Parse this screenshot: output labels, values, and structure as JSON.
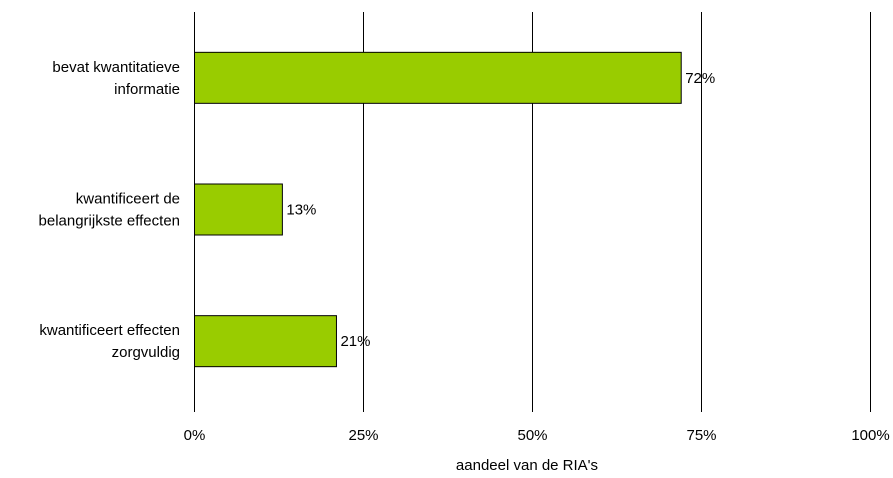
{
  "chart_data": {
    "type": "bar",
    "orientation": "horizontal",
    "categories": [
      [
        "bevat kwantitatieve",
        "informatie"
      ],
      [
        "kwantificeert de",
        "belangrijkste effecten"
      ],
      [
        "kwantificeert effecten",
        "zorgvuldig"
      ]
    ],
    "values": [
      72,
      13,
      21
    ],
    "value_labels": [
      "72%",
      "13%",
      "21%"
    ],
    "xlim": [
      0,
      100
    ],
    "xticks": [
      "0%",
      "25%",
      "50%",
      "75%",
      "100%"
    ],
    "xlabel": "aandeel van de RIA's",
    "ylabel": "",
    "title": "",
    "bar_color": "#99cc00",
    "grid": "vertical",
    "legend": "none"
  }
}
